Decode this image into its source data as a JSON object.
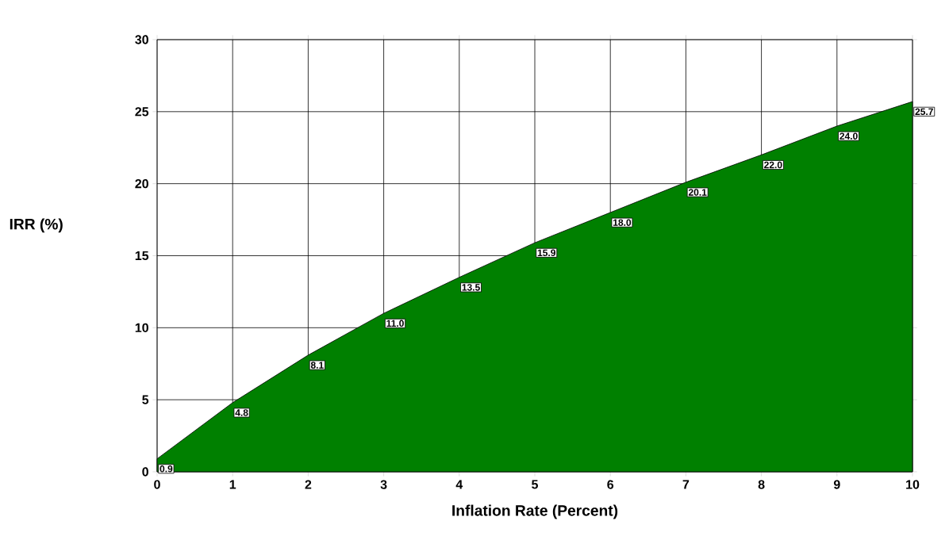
{
  "chart_data": {
    "type": "area",
    "xlabel": "Inflation Rate (Percent)",
    "ylabel": "IRR (%)",
    "x": [
      0,
      1,
      2,
      3,
      4,
      5,
      6,
      7,
      8,
      9,
      10
    ],
    "values": [
      0.9,
      4.8,
      8.1,
      11.0,
      13.5,
      15.9,
      18.0,
      20.1,
      22.0,
      24.0,
      25.7
    ],
    "value_labels": [
      "0.9",
      "4.8",
      "8.1",
      "11.0",
      "13.5",
      "15.9",
      "18.0",
      "20.1",
      "22.0",
      "24.0",
      "25.7"
    ],
    "color": "#008000",
    "xlim": [
      0,
      10
    ],
    "ylim": [
      0,
      30
    ],
    "xticks": [
      0,
      1,
      2,
      3,
      4,
      5,
      6,
      7,
      8,
      9,
      10
    ],
    "yticks": [
      0,
      5,
      10,
      15,
      20,
      25,
      30
    ],
    "grid": true
  }
}
